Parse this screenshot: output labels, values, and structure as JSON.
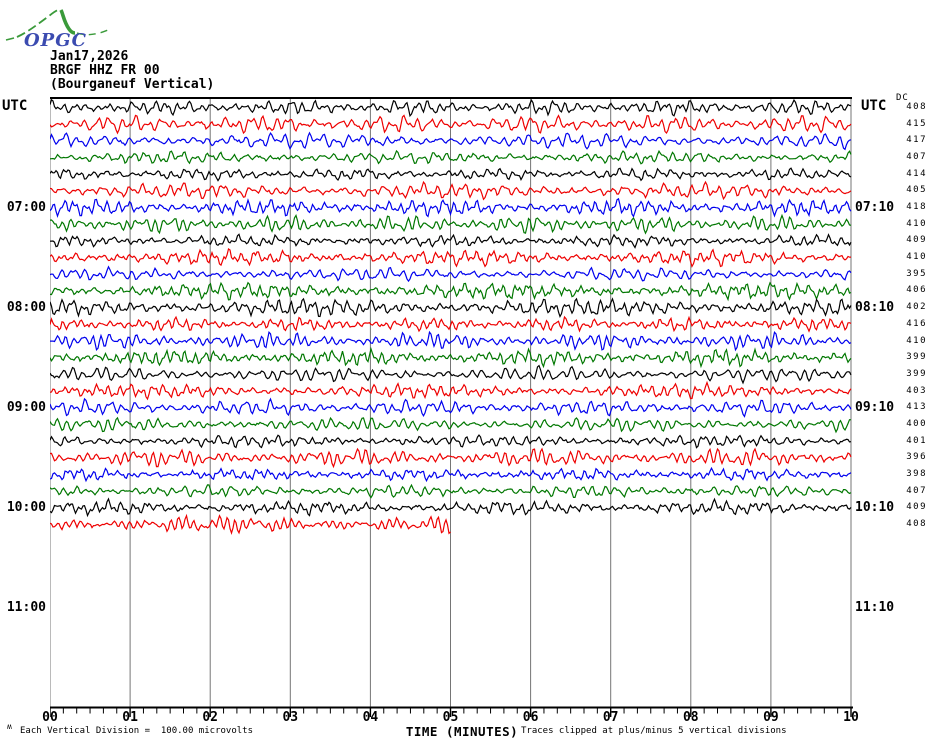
{
  "logo": {
    "text": "OPGC"
  },
  "header": {
    "date": "Jan17,2026",
    "station": "BRGF HHZ FR 00",
    "station_desc": "(Bourganeuf Vertical)"
  },
  "left_axis": {
    "title": "UTC",
    "labels": [
      {
        "text": "07:00",
        "row": 6
      },
      {
        "text": "08:00",
        "row": 12
      },
      {
        "text": "09:00",
        "row": 18
      },
      {
        "text": "10:00",
        "row": 24
      },
      {
        "text": "11:00",
        "row": 30
      }
    ]
  },
  "right_axis": {
    "title": "UTC",
    "dc_header": "DC",
    "labels": [
      {
        "text": "07:10",
        "row": 6
      },
      {
        "text": "08:10",
        "row": 12
      },
      {
        "text": "09:10",
        "row": 18
      },
      {
        "text": "10:10",
        "row": 24
      },
      {
        "text": "11:10",
        "row": 30
      }
    ]
  },
  "x_axis": {
    "title": "TIME (MINUTES)",
    "tick_labels": [
      "00",
      "01",
      "02",
      "03",
      "04",
      "05",
      "06",
      "07",
      "08",
      "09",
      "10"
    ],
    "minor_divisions_per_major": 6
  },
  "footer": {
    "left_note": "Each Vertical Division =  100.00 microvolts",
    "right_note": "Traces clipped at plus/minus 5 vertical divisions",
    "corner_mark": "ʍ"
  },
  "chart_data": {
    "type": "line",
    "subtype": "helicorder-seismogram",
    "minutes_per_line": 10,
    "microvolts_per_division": 100.0,
    "clip_divisions": 5,
    "grid_color": "#757575",
    "colors_cycle": {
      "black": "#000000",
      "red": "#ee0000",
      "blue": "#0000ee",
      "green": "#007700"
    },
    "traces": [
      {
        "utc": "06:00",
        "color": "black",
        "dc": 408
      },
      {
        "utc": "06:10",
        "color": "red",
        "dc": 415
      },
      {
        "utc": "06:20",
        "color": "blue",
        "dc": 417
      },
      {
        "utc": "06:30",
        "color": "green",
        "dc": 407
      },
      {
        "utc": "06:40",
        "color": "black",
        "dc": 414
      },
      {
        "utc": "06:50",
        "color": "red",
        "dc": 405
      },
      {
        "utc": "07:00",
        "color": "blue",
        "dc": 418
      },
      {
        "utc": "07:10",
        "color": "green",
        "dc": 410
      },
      {
        "utc": "07:20",
        "color": "black",
        "dc": 409
      },
      {
        "utc": "07:30",
        "color": "red",
        "dc": 410
      },
      {
        "utc": "07:40",
        "color": "blue",
        "dc": 395
      },
      {
        "utc": "07:50",
        "color": "green",
        "dc": 406
      },
      {
        "utc": "08:00",
        "color": "black",
        "dc": 402
      },
      {
        "utc": "08:10",
        "color": "red",
        "dc": 416
      },
      {
        "utc": "08:20",
        "color": "blue",
        "dc": 410
      },
      {
        "utc": "08:30",
        "color": "green",
        "dc": 399
      },
      {
        "utc": "08:40",
        "color": "black",
        "dc": 399
      },
      {
        "utc": "08:50",
        "color": "red",
        "dc": 403
      },
      {
        "utc": "09:00",
        "color": "blue",
        "dc": 413
      },
      {
        "utc": "09:10",
        "color": "green",
        "dc": 400
      },
      {
        "utc": "09:20",
        "color": "black",
        "dc": 401
      },
      {
        "utc": "09:30",
        "color": "red",
        "dc": 396
      },
      {
        "utc": "09:40",
        "color": "blue",
        "dc": 398
      },
      {
        "utc": "09:50",
        "color": "green",
        "dc": 407
      },
      {
        "utc": "10:00",
        "color": "black",
        "dc": 409
      },
      {
        "utc": "10:10",
        "color": "red",
        "dc": 408,
        "end_minute": 5
      }
    ]
  }
}
